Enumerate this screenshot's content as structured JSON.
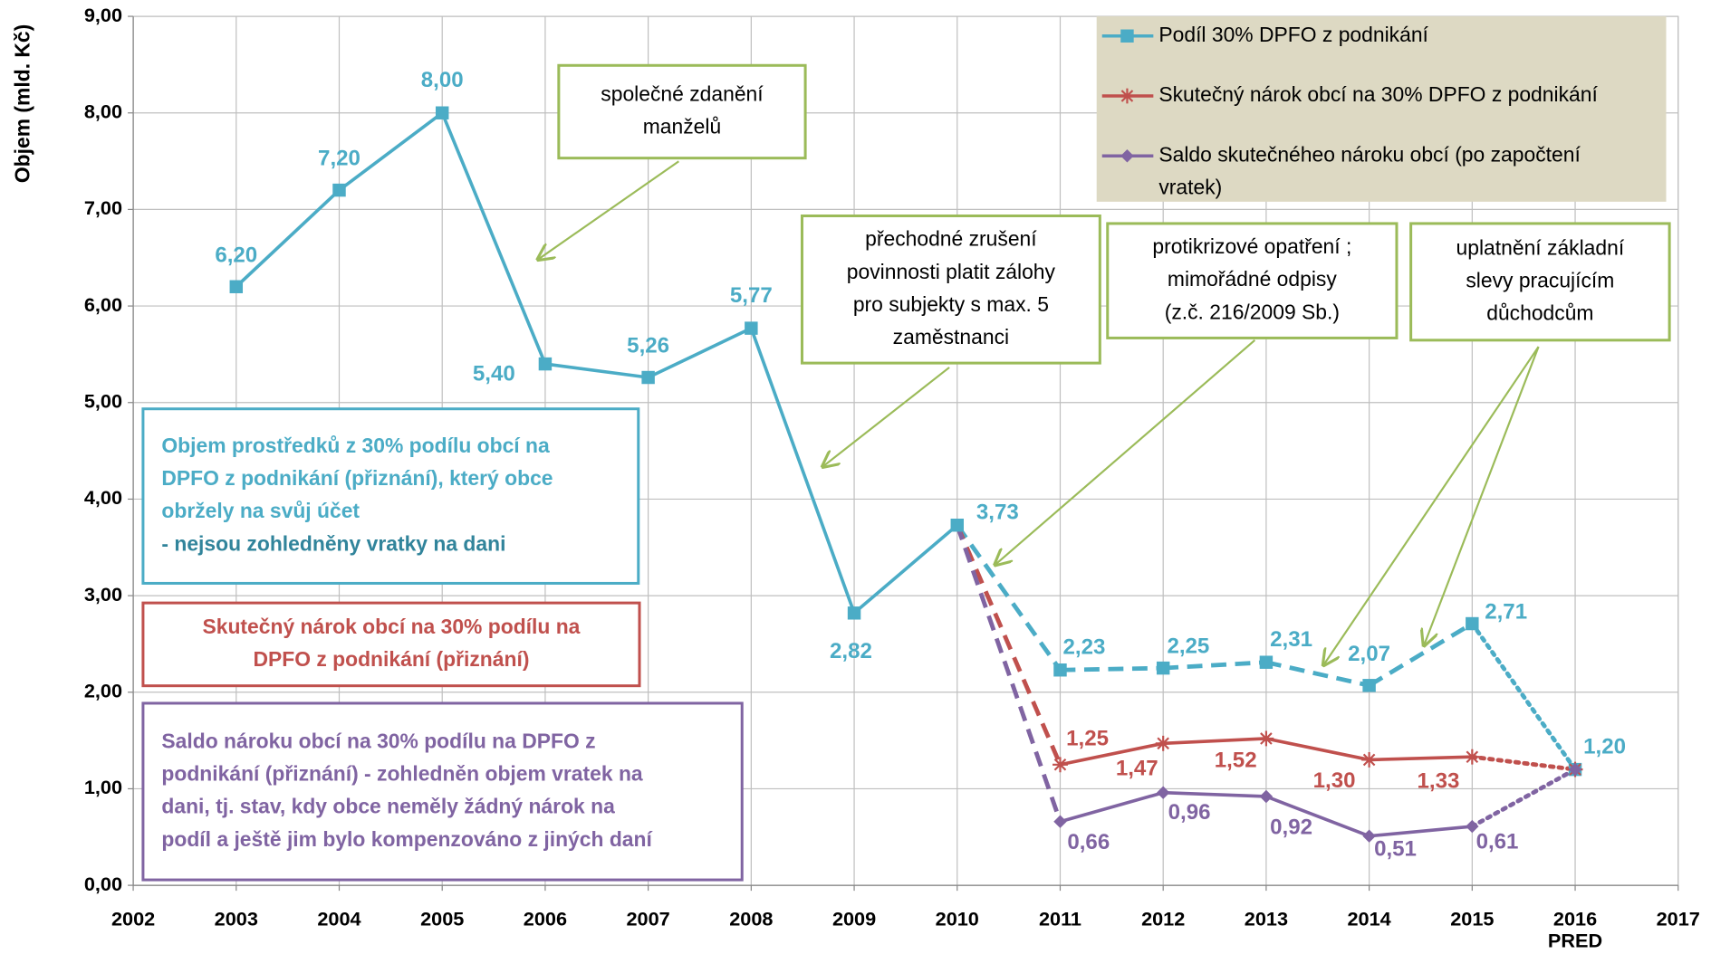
{
  "chart_data": {
    "type": "line",
    "y_label": "Objem (mld. Kč)",
    "xlim": [
      2002,
      2017
    ],
    "xticks": [
      2002,
      2003,
      2004,
      2005,
      2006,
      2007,
      2008,
      2009,
      2010,
      2011,
      2012,
      2013,
      2014,
      2015,
      2016,
      2017
    ],
    "xtick_sublabels": [
      {
        "x": 2016,
        "label": "PRED"
      }
    ],
    "ylim": [
      0,
      9
    ],
    "yticks": [
      {
        "value": 0,
        "label": "0,00"
      },
      {
        "value": 1,
        "label": "1,00"
      },
      {
        "value": 2,
        "label": "2,00"
      },
      {
        "value": 3,
        "label": "3,00"
      },
      {
        "value": 4,
        "label": "4,00"
      },
      {
        "value": 5,
        "label": "5,00"
      },
      {
        "value": 6,
        "label": "6,00"
      },
      {
        "value": 7,
        "label": "7,00"
      },
      {
        "value": 8,
        "label": "8,00"
      },
      {
        "value": 9,
        "label": "9,00"
      }
    ],
    "grid": true,
    "legend": "top-right",
    "series": [
      {
        "name": "Podíl 30% DPFO z podnikání",
        "color": "#4bacc6",
        "marker": "square",
        "x": [
          2003,
          2004,
          2005,
          2006,
          2007,
          2008,
          2009,
          2010,
          2011,
          2012,
          2013,
          2014,
          2015,
          2016
        ],
        "values": [
          6.2,
          7.2,
          8.0,
          5.4,
          5.26,
          5.77,
          2.82,
          3.73,
          2.23,
          2.25,
          2.31,
          2.07,
          2.71,
          1.2
        ],
        "value_labels": [
          "6,20",
          "7,20",
          "8,00",
          "5,40",
          "5,26",
          "5,77",
          "2,82",
          "3,73",
          "2,23",
          "2,25",
          "2,31",
          "2,07",
          "2,71",
          "1,20"
        ],
        "segment_styles": [
          "solid",
          "solid",
          "solid",
          "solid",
          "solid",
          "solid",
          "solid",
          "dashed",
          "dashed",
          "dashed",
          "dashed",
          "dashed",
          "dotted"
        ]
      },
      {
        "name": "Skutečný nárok obcí na 30% DPFO z podnikání",
        "color": "#c0504d",
        "marker": "star",
        "x": [
          2010,
          2011,
          2012,
          2013,
          2014,
          2015,
          2016
        ],
        "values": [
          3.73,
          1.25,
          1.47,
          1.52,
          1.3,
          1.33,
          1.2
        ],
        "value_labels": [
          null,
          "1,25",
          "1,47",
          "1,52",
          "1,30",
          "1,33",
          null
        ],
        "segment_styles": [
          "dashed",
          "solid",
          "solid",
          "solid",
          "solid",
          "dotted"
        ]
      },
      {
        "name": "Saldo skutečnéheo nároku obcí (po započtení vratek)",
        "color": "#8064a2",
        "marker": "diamond",
        "x": [
          2010,
          2011,
          2012,
          2013,
          2014,
          2015,
          2016
        ],
        "values": [
          3.73,
          0.66,
          0.96,
          0.92,
          0.51,
          0.61,
          1.2
        ],
        "value_labels": [
          null,
          "0,66",
          "0,96",
          "0,92",
          "0,51",
          "0,61",
          null
        ],
        "segment_styles": [
          "dashed",
          "solid",
          "solid",
          "solid",
          "solid",
          "dotted"
        ]
      }
    ],
    "annotations": [
      {
        "lines": [
          "společné zdanění",
          "manželů"
        ],
        "border": "#9bbb59",
        "color": "#000000"
      },
      {
        "lines": [
          "přechodné zrušení",
          "povinnosti platit zálohy",
          "pro subjekty s max. 5",
          "zaměstnanci"
        ],
        "border": "#9bbb59",
        "color": "#000000"
      },
      {
        "lines": [
          "protikrizové opatření ;",
          "mimořádné odpisy",
          "(z.č. 216/2009 Sb.)"
        ],
        "border": "#9bbb59",
        "color": "#000000"
      },
      {
        "lines": [
          "uplatnění základní",
          "slevy pracujícím",
          "důchodcům"
        ],
        "border": "#9bbb59",
        "color": "#000000"
      },
      {
        "lines": [
          "Objem prostředků z 30% podílu obcí na",
          "DPFO z podnikání (přiznání), který obce",
          "obržely na svůj účet",
          "- nejsou zohledněny vratky na dani"
        ],
        "border": "#4bacc6",
        "color": "#4bacc6",
        "last_line_color": "#31849b"
      },
      {
        "lines": [
          "Skutečný nárok obcí na 30% podílu na",
          "DPFO z podnikání (přiznání)"
        ],
        "border": "#c0504d",
        "color": "#c0504d"
      },
      {
        "lines": [
          "Saldo nároku obcí na 30% podílu na DPFO z",
          "podnikání (přiznání) - zohledněn objem vratek  na",
          "dani, tj. stav, kdy obce neměly žádný nárok na",
          "podíl a ještě jim bylo kompenzováno z jiných daní"
        ],
        "border": "#8064a2",
        "color": "#8064a2"
      }
    ]
  }
}
